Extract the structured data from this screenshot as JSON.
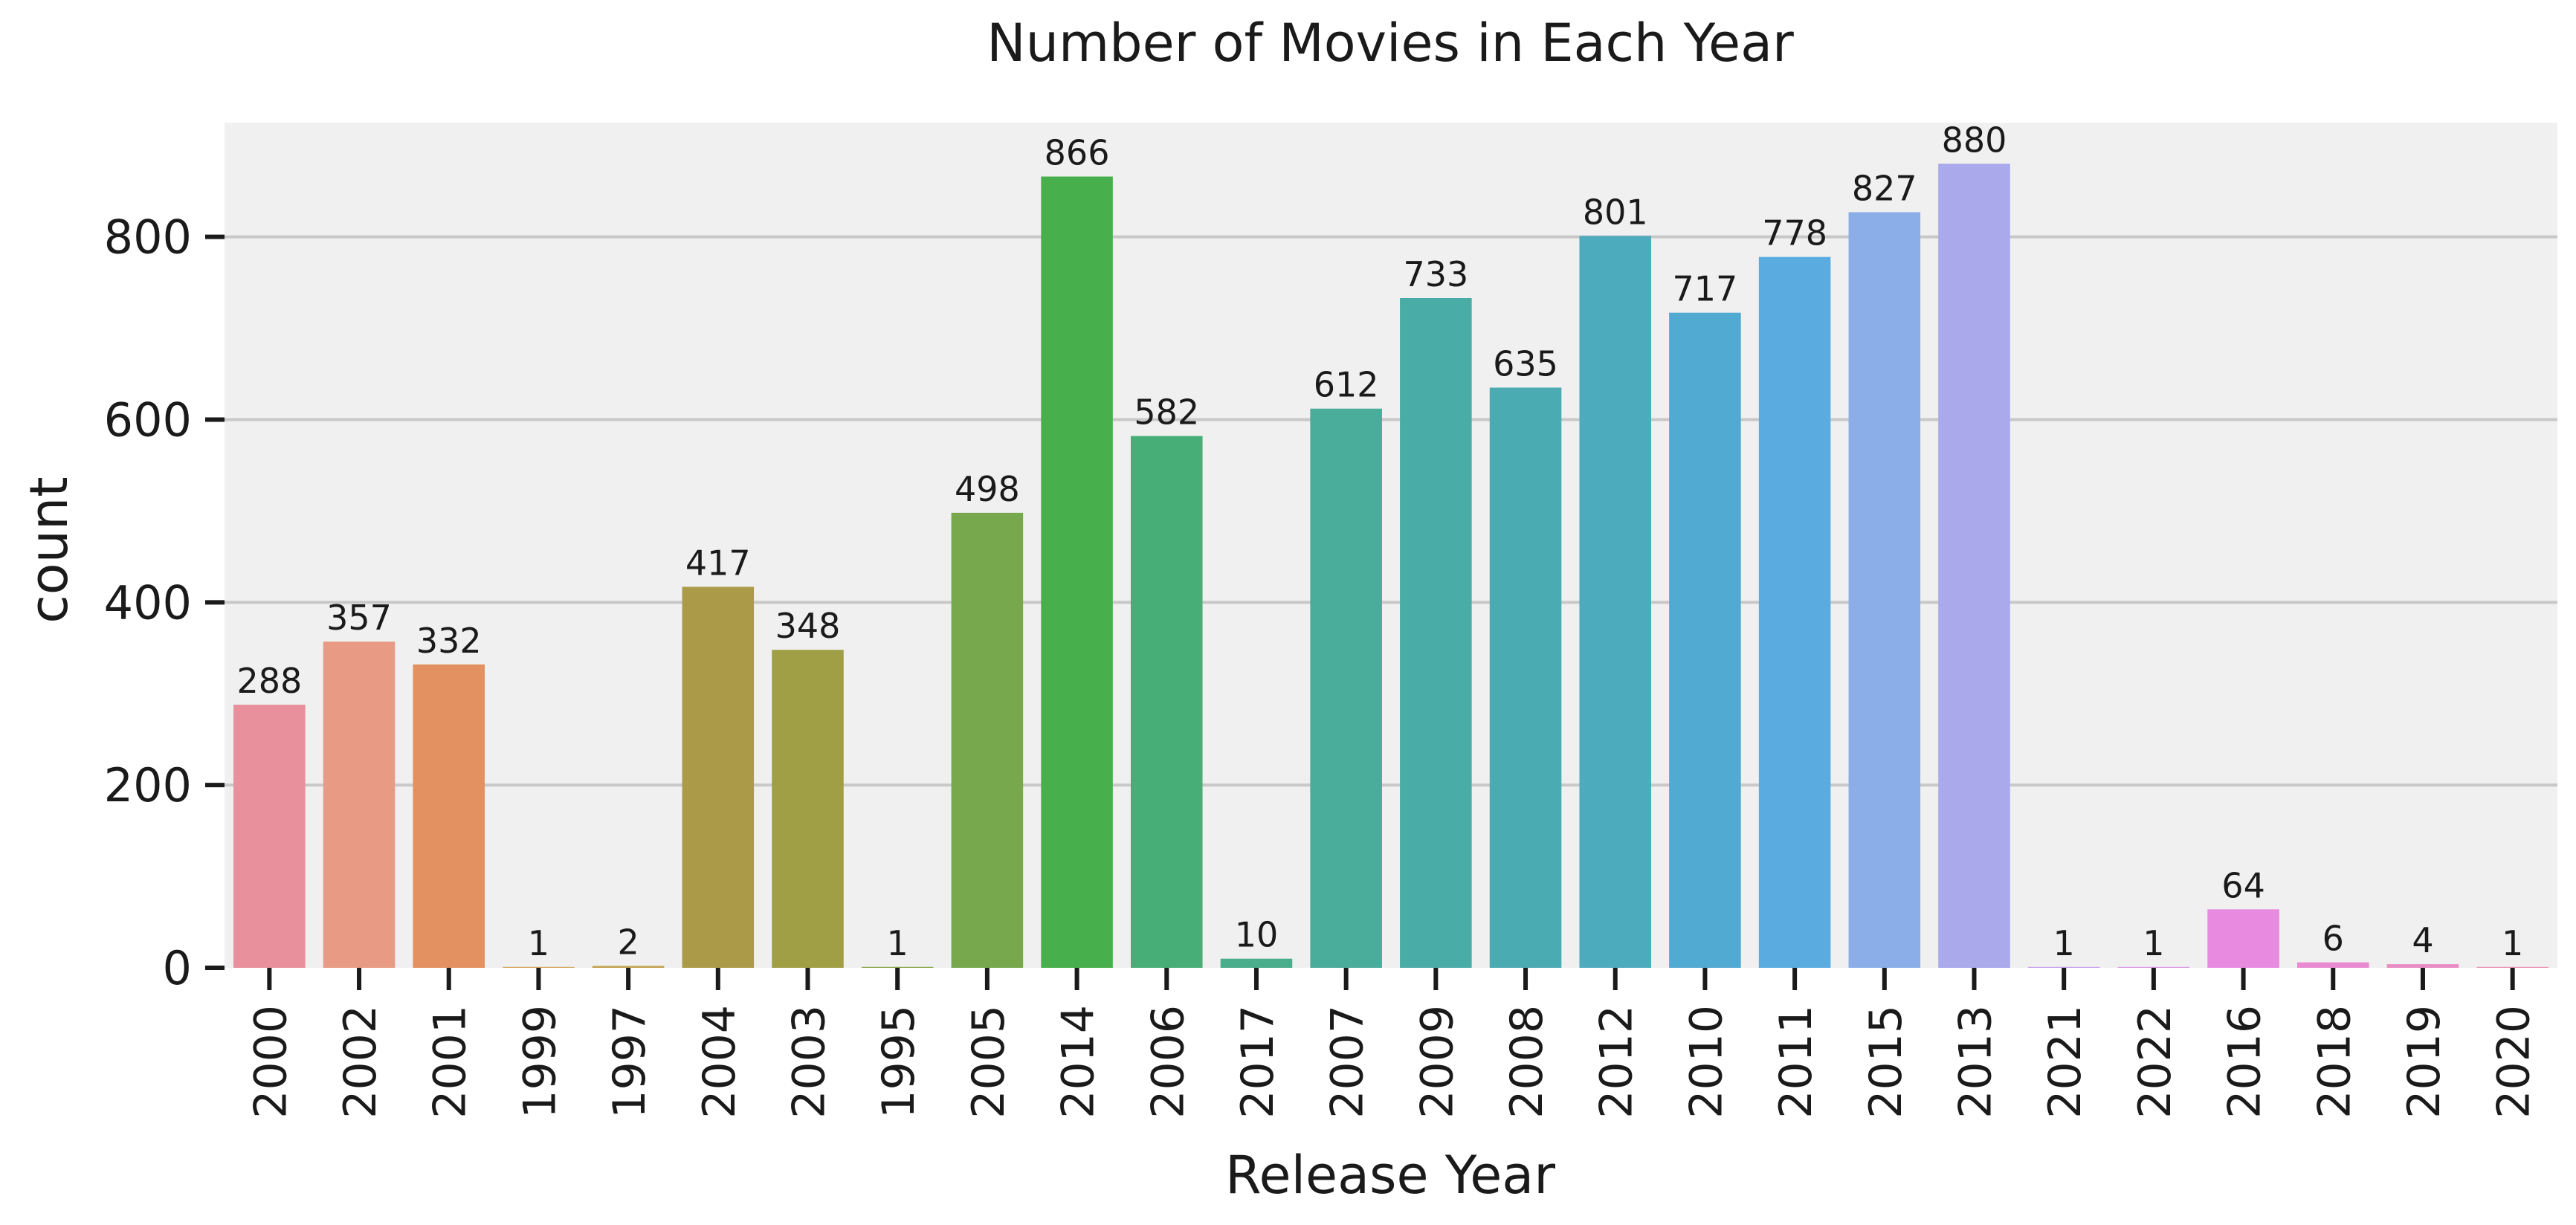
{
  "chart_data": {
    "type": "bar",
    "title": "Number of Movies in Each Year",
    "xlabel": "Release Year",
    "ylabel": "count",
    "categories": [
      "2000",
      "2002",
      "2001",
      "1999",
      "1997",
      "2004",
      "2003",
      "1995",
      "2005",
      "2014",
      "2006",
      "2017",
      "2007",
      "2009",
      "2008",
      "2012",
      "2010",
      "2011",
      "2015",
      "2013",
      "2021",
      "2022",
      "2016",
      "2018",
      "2019",
      "2020"
    ],
    "values": [
      288,
      357,
      332,
      1,
      2,
      417,
      348,
      1,
      498,
      866,
      582,
      10,
      612,
      733,
      635,
      801,
      717,
      778,
      827,
      880,
      1,
      1,
      64,
      6,
      4,
      1
    ],
    "colors": [
      "#e8919c",
      "#e89a85",
      "#e39160",
      "#d4a55a",
      "#c3a04c",
      "#ab9b48",
      "#a09f46",
      "#8aa346",
      "#78a84d",
      "#47b04c",
      "#48ae77",
      "#4aad8b",
      "#4aac9b",
      "#4aaca7",
      "#4aabb3",
      "#4cabbd",
      "#51aad2",
      "#5aace0",
      "#8caee8",
      "#a9a9ec",
      "#c4a0ea",
      "#dc96e5",
      "#e88ae0",
      "#e88bd1",
      "#e88ec4",
      "#e98fb4"
    ],
    "ylim": [
      0,
      925
    ],
    "yticks": [
      0,
      200,
      400,
      600,
      800
    ],
    "grid": true,
    "background": "#f0f0f0"
  }
}
